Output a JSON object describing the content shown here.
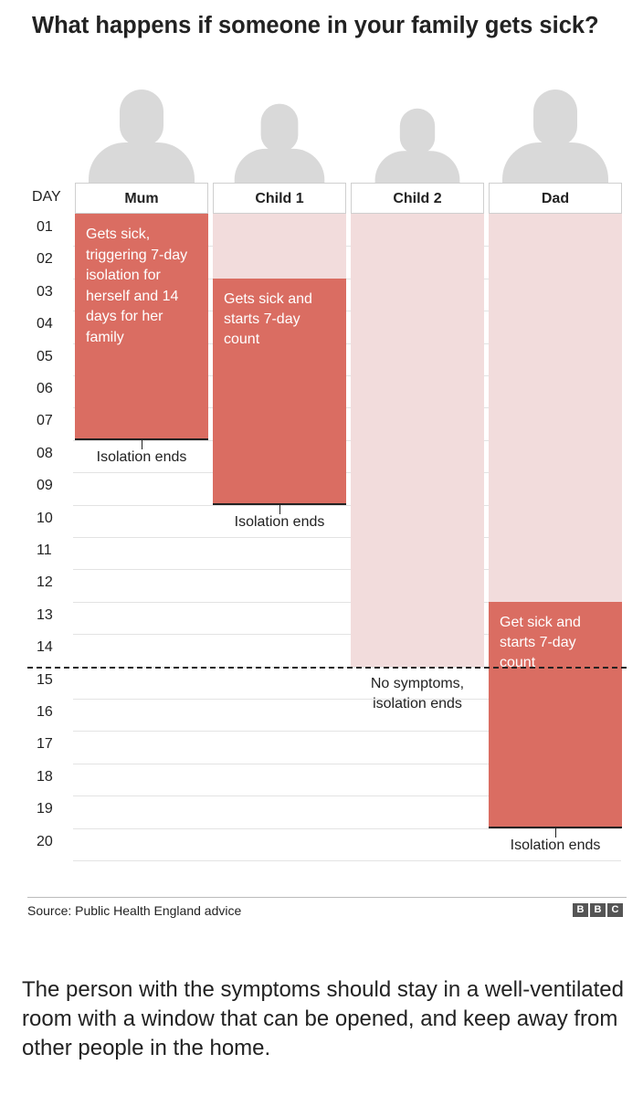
{
  "title": "What happens if someone in your family gets sick?",
  "chart_data": {
    "type": "gantt",
    "day_header": "DAY",
    "days": [
      "01",
      "02",
      "03",
      "04",
      "05",
      "06",
      "07",
      "08",
      "09",
      "10",
      "11",
      "12",
      "13",
      "14",
      "15",
      "16",
      "17",
      "18",
      "19",
      "20"
    ],
    "columns": [
      {
        "name": "Mum",
        "light_start": 1,
        "light_end": 1,
        "sick_start": 1,
        "sick_end": 7,
        "sick_text": "Gets sick, triggering 7-day isolation for herself and 14 days for her family",
        "end_label": "Isolation ends",
        "end_day": 8
      },
      {
        "name": "Child 1",
        "light_start": 1,
        "light_end": 2,
        "sick_start": 3,
        "sick_end": 9,
        "sick_text": "Gets sick and starts 7-day count",
        "end_label": "Isolation ends",
        "end_day": 10
      },
      {
        "name": "Child 2",
        "light_start": 1,
        "light_end": 14,
        "sick_start": null,
        "sick_end": null,
        "sick_text": "",
        "end_label": "No symptoms, isolation ends",
        "end_day": 15
      },
      {
        "name": "Dad",
        "light_start": 1,
        "light_end": 12,
        "sick_start": 13,
        "sick_end": 19,
        "sick_text": "Get sick and starts 7-day count",
        "end_label": "Isolation ends",
        "end_day": 20
      }
    ],
    "household_isolation_end_day": 14,
    "colors": {
      "sick": "#da6d62",
      "isolating": "#f2dcdc",
      "person": "#d9d9d9"
    }
  },
  "source": "Source: Public Health England advice",
  "logo": [
    "B",
    "B",
    "C"
  ],
  "caption": "The person with the symptoms should stay in a well-ventilated room with a window that can be opened, and keep away from other people in the home."
}
